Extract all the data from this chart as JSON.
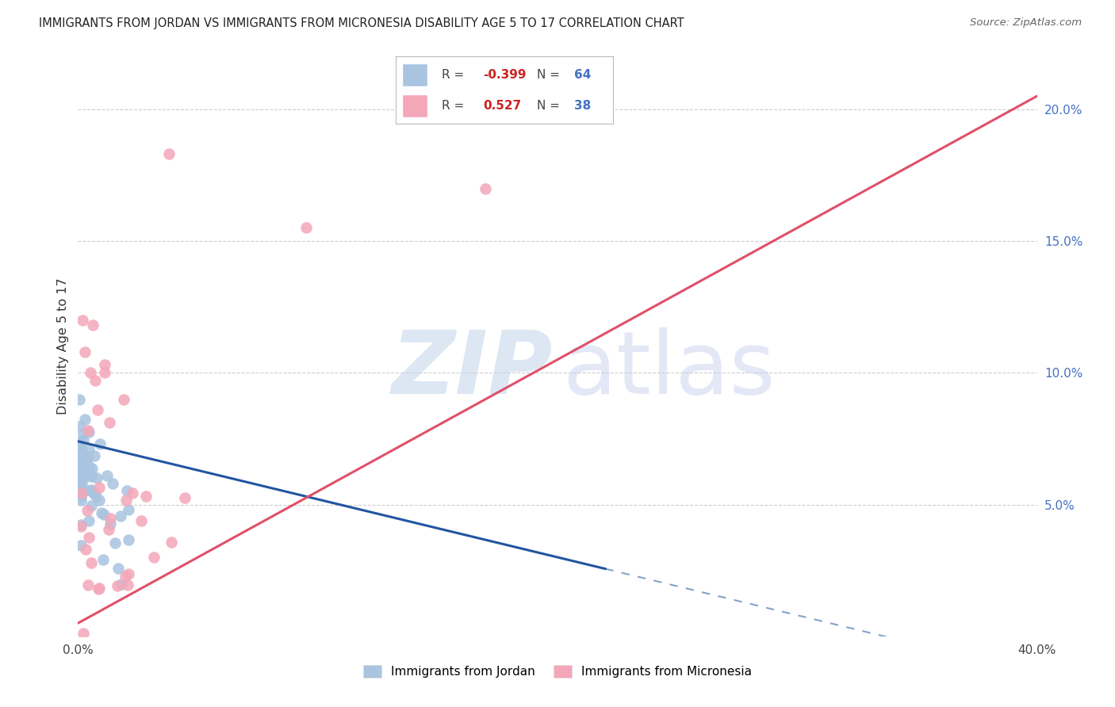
{
  "title": "IMMIGRANTS FROM JORDAN VS IMMIGRANTS FROM MICRONESIA DISABILITY AGE 5 TO 17 CORRELATION CHART",
  "source": "Source: ZipAtlas.com",
  "ylabel": "Disability Age 5 to 17",
  "xlim": [
    0.0,
    0.4
  ],
  "ylim": [
    0.0,
    0.22
  ],
  "xtick_positions": [
    0.0,
    0.05,
    0.1,
    0.15,
    0.2,
    0.25,
    0.3,
    0.35,
    0.4
  ],
  "xtick_labels": [
    "0.0%",
    "",
    "",
    "",
    "",
    "",
    "",
    "",
    "40.0%"
  ],
  "yticks_right": [
    0.05,
    0.1,
    0.15,
    0.2
  ],
  "ytick_labels_right": [
    "5.0%",
    "10.0%",
    "15.0%",
    "20.0%"
  ],
  "jordan_color": "#a8c4e0",
  "micronesia_color": "#f4a7b9",
  "jordan_line_color": "#2255a0",
  "micronesia_line_color": "#e0506a",
  "background_color": "#ffffff",
  "jordan_seed": 42,
  "micronesia_seed": 17,
  "jordan_R": -0.399,
  "jordan_N": 64,
  "micronesia_R": 0.527,
  "micronesia_N": 38,
  "watermark_zip_color": "#c5d8eb",
  "watermark_atlas_color": "#ccd5f0",
  "grid_color": "#cccccc",
  "right_axis_color": "#4472c4",
  "legend_r1_val": "-0.399",
  "legend_n1_val": "64",
  "legend_r2_val": "0.527",
  "legend_n2_val": "38"
}
